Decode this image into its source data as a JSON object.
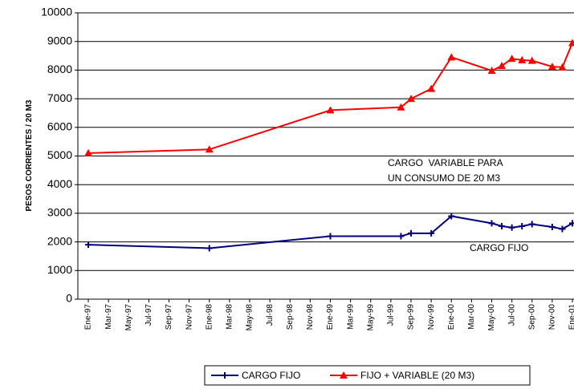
{
  "chart_data": {
    "type": "line",
    "y_label": "PESOS CORRIENTES / 20 M3",
    "x": [
      "1997-01",
      "1998-01",
      "1999-01",
      "1999-08",
      "1999-09",
      "1999-11",
      "2000-01",
      "2000-05",
      "2000-06",
      "2000-07",
      "2000-08",
      "2000-09",
      "2000-11",
      "2000-12",
      "2001-01"
    ],
    "series": [
      {
        "name": "CARGO FIJO",
        "color": "#000080",
        "marker": "plus",
        "values": [
          1900,
          1780,
          2200,
          2200,
          2300,
          2300,
          2900,
          2650,
          2550,
          2500,
          2550,
          2620,
          2520,
          2450,
          2650
        ]
      },
      {
        "name": "FIJO + VARIABLE (20 M3)",
        "color": "#ff0000",
        "marker": "triangle",
        "values": [
          5100,
          5230,
          6600,
          6700,
          7000,
          7350,
          8450,
          7980,
          8150,
          8400,
          8350,
          8330,
          8120,
          8100,
          8950
        ]
      }
    ],
    "xlim": [
      "1997-01",
      "2001-01"
    ],
    "xticks": [
      {
        "value": "1997-01",
        "label": "Ene-97"
      },
      {
        "value": "1997-03",
        "label": "Mar-97"
      },
      {
        "value": "1997-05",
        "label": "May-97"
      },
      {
        "value": "1997-07",
        "label": "Jul-97"
      },
      {
        "value": "1997-09",
        "label": "Sep-97"
      },
      {
        "value": "1997-11",
        "label": "Nov-97"
      },
      {
        "value": "1998-01",
        "label": "Ene-98"
      },
      {
        "value": "1998-03",
        "label": "Mar-98"
      },
      {
        "value": "1998-05",
        "label": "May-98"
      },
      {
        "value": "1998-07",
        "label": "Jul-98"
      },
      {
        "value": "1998-09",
        "label": "Sep-98"
      },
      {
        "value": "1998-11",
        "label": "Nov-98"
      },
      {
        "value": "1999-01",
        "label": "Ene-99"
      },
      {
        "value": "1999-03",
        "label": "Mar-99"
      },
      {
        "value": "1999-05",
        "label": "May-99"
      },
      {
        "value": "1999-07",
        "label": "Jul-99"
      },
      {
        "value": "1999-09",
        "label": "Sep-99"
      },
      {
        "value": "1999-11",
        "label": "Nov-99"
      },
      {
        "value": "2000-01",
        "label": "Ene-00"
      },
      {
        "value": "2000-03",
        "label": "Mar-00"
      },
      {
        "value": "2000-05",
        "label": "May-00"
      },
      {
        "value": "2000-07",
        "label": "Jul-00"
      },
      {
        "value": "2000-09",
        "label": "Sep-00"
      },
      {
        "value": "2000-11",
        "label": "Nov-00"
      },
      {
        "value": "2001-01",
        "label": "Ene-01"
      }
    ],
    "ylim": [
      0,
      10000
    ],
    "yticks": [
      0,
      1000,
      2000,
      3000,
      4000,
      5000,
      6000,
      7000,
      8000,
      9000,
      10000
    ],
    "grid": true,
    "annotations": [
      "CARGO  VARIABLE PARA",
      "UN CONSUMO DE 20 M3",
      "CARGO FIJO"
    ]
  }
}
